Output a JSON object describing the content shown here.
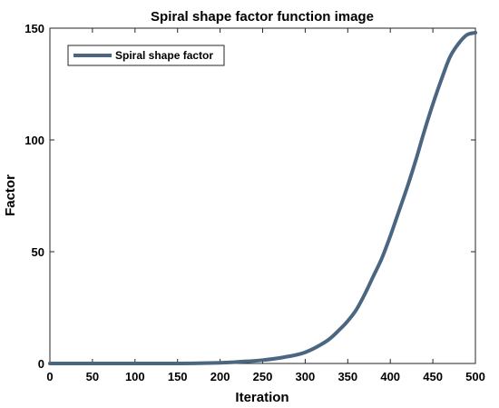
{
  "chart_data": {
    "type": "line",
    "title": "Spiral shape factor function image",
    "xlabel": "Iteration",
    "ylabel": "Factor",
    "xlim": [
      0,
      500
    ],
    "ylim": [
      0,
      150
    ],
    "xticks": [
      0,
      50,
      100,
      150,
      200,
      250,
      300,
      350,
      400,
      450,
      500
    ],
    "yticks": [
      0,
      50,
      100,
      150
    ],
    "grid": false,
    "legend_position": "top-left",
    "series": [
      {
        "name": "Spiral shape factor",
        "color": "#4a6680",
        "x": [
          0,
          50,
          100,
          150,
          200,
          225,
          250,
          275,
          300,
          325,
          340,
          350,
          360,
          370,
          380,
          390,
          400,
          410,
          420,
          430,
          440,
          450,
          460,
          470,
          480,
          490,
          500
        ],
        "y": [
          0,
          0,
          0,
          0,
          0.3,
          0.8,
          1.5,
          2.8,
          5,
          10,
          15,
          19,
          24,
          31,
          39,
          47,
          57,
          68,
          79,
          91,
          104,
          116,
          127,
          137,
          143,
          147,
          148
        ]
      }
    ]
  }
}
